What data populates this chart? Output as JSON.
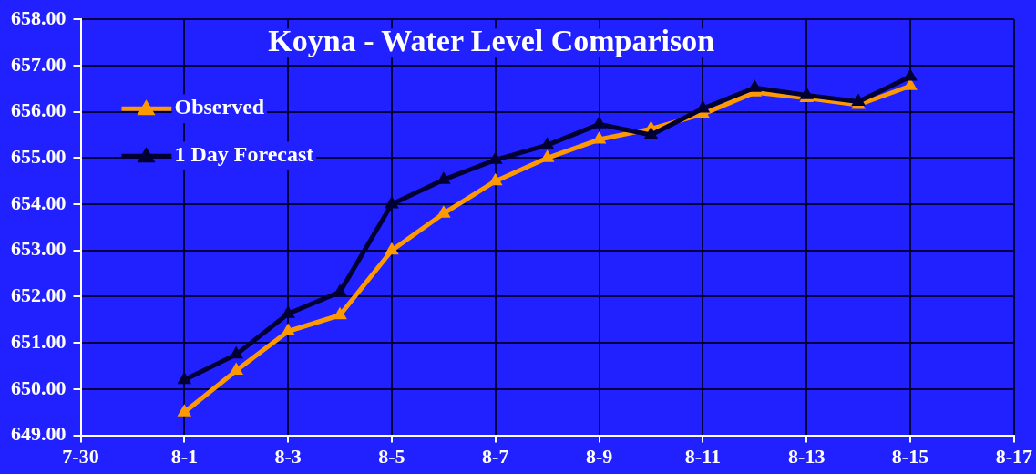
{
  "chart_data": {
    "type": "line",
    "title": "Koyna - Water Level Comparison",
    "x": [
      "--08-01",
      "--08-02",
      "--08-03",
      "--08-04",
      "--08-05",
      "--08-06",
      "--08-07",
      "--08-08",
      "--08-09",
      "--08-10",
      "--08-11",
      "--08-12",
      "--08-13",
      "--08-14",
      "--08-15"
    ],
    "series": [
      {
        "name": "Observed",
        "color": "#ff9900",
        "values": [
          649.5,
          650.4,
          651.25,
          651.6,
          653.0,
          653.8,
          654.5,
          655.0,
          655.4,
          655.63,
          655.95,
          656.42,
          656.3,
          656.15,
          656.56
        ]
      },
      {
        "name": "1 Day Forecast",
        "color": "#000033",
        "values": [
          650.2,
          650.75,
          651.63,
          652.1,
          654.0,
          654.53,
          654.96,
          655.28,
          655.73,
          655.5,
          656.07,
          656.52,
          656.36,
          656.22,
          656.76
        ]
      }
    ],
    "xlim": [
      "--07-30",
      "--08-17"
    ],
    "xticks": [
      {
        "value": "--07-30",
        "label": "7-30"
      },
      {
        "value": "--08-01",
        "label": "8-1"
      },
      {
        "value": "--08-03",
        "label": "8-3"
      },
      {
        "value": "--08-05",
        "label": "8-5"
      },
      {
        "value": "--08-07",
        "label": "8-7"
      },
      {
        "value": "--08-09",
        "label": "8-9"
      },
      {
        "value": "--08-11",
        "label": "8-11"
      },
      {
        "value": "--08-13",
        "label": "8-13"
      },
      {
        "value": "--08-15",
        "label": "8-15"
      },
      {
        "value": "--08-17",
        "label": "8-17"
      }
    ],
    "ylim": [
      649,
      658
    ],
    "yticks": [
      {
        "value": 649,
        "label": "649.00"
      },
      {
        "value": 650,
        "label": "650.00"
      },
      {
        "value": 651,
        "label": "651.00"
      },
      {
        "value": 652,
        "label": "652.00"
      },
      {
        "value": 653,
        "label": "653.00"
      },
      {
        "value": 654,
        "label": "654.00"
      },
      {
        "value": 655,
        "label": "655.00"
      },
      {
        "value": 656,
        "label": "656.00"
      },
      {
        "value": 657,
        "label": "657.00"
      },
      {
        "value": 658,
        "label": "658.00"
      }
    ],
    "grid": true,
    "legend": "top left",
    "marker": "triangle",
    "line_style": "solid"
  }
}
